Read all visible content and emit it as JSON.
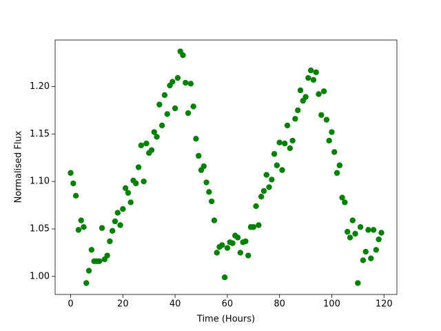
{
  "chart_data": {
    "type": "scatter",
    "xlabel": "Time (Hours)",
    "ylabel": "Normalised Flux",
    "color": "#008000",
    "x": [
      0,
      1,
      2,
      3,
      4,
      5,
      6,
      7,
      8,
      9,
      10,
      11,
      12,
      13,
      14,
      15,
      16,
      17,
      18,
      19,
      20,
      21,
      22,
      23,
      24,
      25,
      26,
      27,
      28,
      29,
      30,
      31,
      32,
      33,
      34,
      35,
      36,
      37,
      38,
      39,
      40,
      41,
      42,
      43,
      44,
      45,
      46,
      47,
      48,
      49,
      50,
      51,
      52,
      53,
      54,
      55,
      56,
      57,
      58,
      59,
      60,
      61,
      62,
      63,
      64,
      65,
      66,
      67,
      68,
      69,
      70,
      71,
      72,
      73,
      74,
      75,
      76,
      77,
      78,
      79,
      80,
      81,
      82,
      83,
      84,
      85,
      86,
      87,
      88,
      89,
      90,
      91,
      92,
      93,
      94,
      95,
      96,
      97,
      98,
      99,
      100,
      101,
      102,
      103,
      104,
      105,
      106,
      107,
      108,
      109,
      110,
      111,
      112,
      113,
      114,
      115,
      116,
      117,
      118,
      119
    ],
    "values": [
      1.109,
      1.098,
      1.085,
      1.049,
      1.059,
      1.052,
      0.993,
      1.006,
      1.028,
      1.016,
      1.016,
      1.016,
      1.051,
      1.018,
      1.022,
      1.037,
      1.048,
      1.058,
      1.067,
      1.054,
      1.071,
      1.093,
      1.088,
      1.078,
      1.101,
      1.098,
      1.115,
      1.138,
      1.1,
      1.14,
      1.13,
      1.133,
      1.152,
      1.147,
      1.181,
      1.159,
      1.191,
      1.171,
      1.201,
      1.205,
      1.177,
      1.209,
      1.237,
      1.233,
      1.204,
      1.172,
      1.203,
      1.179,
      1.145,
      1.127,
      1.112,
      1.116,
      1.099,
      1.089,
      1.079,
      1.059,
      1.025,
      1.031,
      1.033,
      0.999,
      1.03,
      1.036,
      1.035,
      1.043,
      1.041,
      1.025,
      1.036,
      1.037,
      1.022,
      1.052,
      1.052,
      1.074,
      1.054,
      1.084,
      1.09,
      1.107,
      1.094,
      1.102,
      1.129,
      1.117,
      1.141,
      1.112,
      1.14,
      1.159,
      1.135,
      1.143,
      1.166,
      1.175,
      1.196,
      1.185,
      1.189,
      1.209,
      1.217,
      1.207,
      1.215,
      1.192,
      1.17,
      1.195,
      1.165,
      1.143,
      1.152,
      1.131,
      1.109,
      1.117,
      1.083,
      1.078,
      1.047,
      1.041,
      1.059,
      1.045,
      0.993,
      1.052,
      1.017,
      1.026,
      1.049,
      1.019,
      1.049,
      1.028,
      1.039,
      1.046
    ],
    "xlim": [
      -5.95,
      124.95
    ],
    "xticks": [
      0,
      20,
      40,
      60,
      80,
      100,
      120
    ],
    "ylim": [
      0.981,
      1.249
    ],
    "yticks": [
      {
        "value": 1.0,
        "label": "1.00"
      },
      1.05,
      {
        "value": 1.1,
        "label": "1.10"
      },
      1.15,
      {
        "value": 1.2,
        "label": "1.20"
      }
    ],
    "grid": false
  }
}
